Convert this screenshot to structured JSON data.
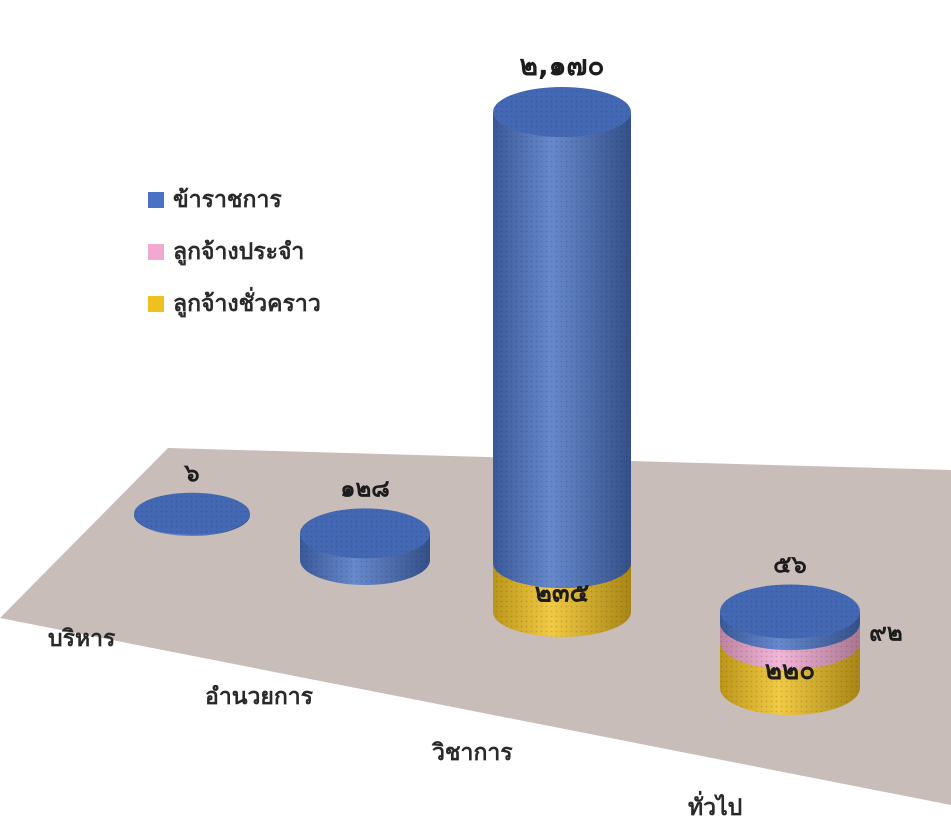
{
  "chart_data": {
    "type": "bar",
    "style": "3d-cylinder-stacked",
    "categories": [
      "บริหาร",
      "อำนวยการ",
      "วิชาการ",
      "ทั่วไป"
    ],
    "series": [
      {
        "name": "ข้าราชการ",
        "color": "#4a72c4",
        "values": [
          6,
          128,
          2170,
          56
        ],
        "value_labels": [
          "๖",
          "๑๒๘",
          "๒,๑๗๐",
          "๕๖"
        ]
      },
      {
        "name": "ลูกจ้างประจำ",
        "color": "#f2a8cf",
        "values": [
          0,
          0,
          0,
          92
        ],
        "value_labels": [
          "",
          "",
          "",
          "๙๒"
        ]
      },
      {
        "name": "ลูกจ้างชั่วคราว",
        "color": "#f0c020",
        "values": [
          0,
          0,
          235,
          220
        ],
        "value_labels": [
          "",
          "",
          "๒๓๕",
          "๒๒๐"
        ]
      }
    ],
    "legend_position": "upper-left",
    "grid": false,
    "floor_color": "#c8bdb8"
  }
}
